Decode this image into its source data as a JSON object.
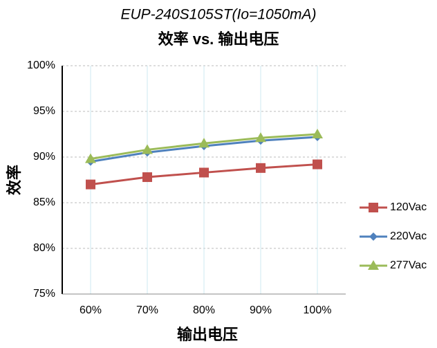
{
  "chart_data": {
    "type": "line",
    "subtitle": "EUP-240S105ST(Io=1050mA)",
    "title": "效率 vs. 输出电压",
    "x_label": "输出电压",
    "y_label": "效率",
    "categories": [
      "60%",
      "70%",
      "80%",
      "90%",
      "100%"
    ],
    "series": [
      {
        "name": "120Vac",
        "color": "#c0504d",
        "marker": "square",
        "values": [
          87.0,
          87.8,
          88.3,
          88.8,
          89.2
        ]
      },
      {
        "name": "220Vac",
        "color": "#4f81bd",
        "marker": "diamond",
        "values": [
          89.5,
          90.5,
          91.2,
          91.8,
          92.2
        ]
      },
      {
        "name": "277Vac",
        "color": "#9bbb59",
        "marker": "triangle",
        "values": [
          89.8,
          90.8,
          91.5,
          92.1,
          92.5
        ]
      }
    ],
    "ylim": [
      75,
      100
    ],
    "yticks": [
      {
        "value": 75,
        "label": "75%"
      },
      {
        "value": 80,
        "label": "80%"
      },
      {
        "value": 85,
        "label": "85%"
      },
      {
        "value": 90,
        "label": "90%"
      },
      {
        "value": 95,
        "label": "95%"
      },
      {
        "value": 100,
        "label": "100%"
      }
    ],
    "grid": true,
    "legend": "right"
  }
}
